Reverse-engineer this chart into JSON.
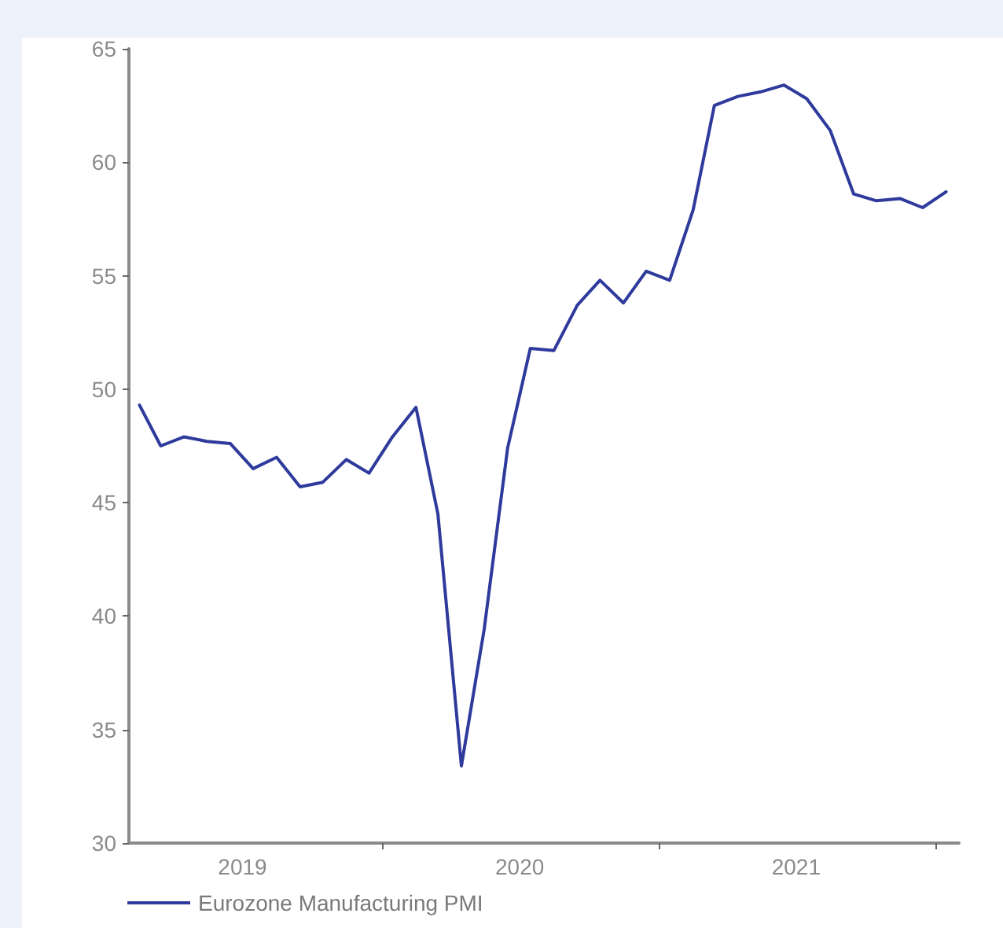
{
  "chart_data": {
    "type": "line",
    "marker": "none",
    "line_style": "solid",
    "grid": false,
    "legend": "bottom left",
    "x": [
      "2019-02-15",
      "2019-03-15",
      "2019-04-15",
      "2019-05-15",
      "2019-06-15",
      "2019-07-15",
      "2019-08-15",
      "2019-09-15",
      "2019-10-15",
      "2019-11-15",
      "2019-12-15",
      "2020-01-15",
      "2020-02-15",
      "2020-03-15",
      "2020-04-15",
      "2020-05-15",
      "2020-06-15",
      "2020-07-15",
      "2020-08-15",
      "2020-09-15",
      "2020-10-15",
      "2020-11-15",
      "2020-12-15",
      "2021-01-15",
      "2021-02-15",
      "2021-03-15",
      "2021-04-15",
      "2021-05-15",
      "2021-06-15",
      "2021-07-15",
      "2021-08-15",
      "2021-09-15",
      "2021-10-15",
      "2021-11-15",
      "2021-12-15",
      "2022-01-15"
    ],
    "series": [
      {
        "name": "Eurozone Manufacturing PMI",
        "color": "#2e3a9c",
        "values": [
          49.3,
          47.5,
          47.9,
          47.7,
          47.6,
          46.5,
          47.0,
          45.7,
          45.9,
          46.9,
          46.3,
          47.9,
          49.2,
          44.5,
          33.4,
          39.4,
          47.4,
          51.8,
          51.7,
          53.7,
          54.8,
          53.8,
          55.2,
          54.8,
          57.9,
          62.5,
          62.9,
          63.1,
          63.4,
          62.8,
          61.4,
          58.6,
          58.3,
          58.4,
          58.0,
          58.7
        ]
      }
    ],
    "xlim": [
      "2019-02-01",
      "2022-02-01"
    ],
    "xticks": [
      {
        "value": "2019-07-01",
        "label": "2019"
      },
      {
        "value": "2020-01-01",
        "label": null
      },
      {
        "value": "2020-07-01",
        "label": "2020"
      },
      {
        "value": "2021-01-01",
        "label": null
      },
      {
        "value": "2021-07-01",
        "label": "2021"
      },
      {
        "value": "2022-01-01",
        "label": null
      }
    ],
    "ylim": [
      30,
      65
    ],
    "yticks": [
      30,
      35,
      40,
      45,
      50,
      55,
      60,
      65
    ]
  }
}
